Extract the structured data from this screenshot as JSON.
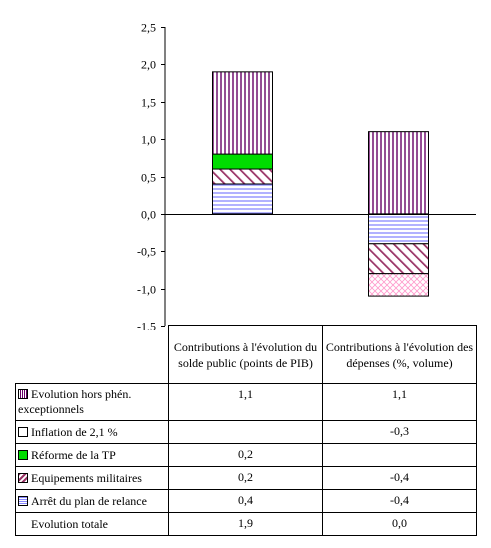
{
  "chart_data": {
    "type": "bar",
    "stacked": true,
    "ylim": [
      -1.5,
      2.5
    ],
    "yticks": [
      "2,5",
      "2,0",
      "1,5",
      "1,0",
      "0,5",
      "0,0",
      "-0,5",
      "-1,0",
      "-1,5"
    ],
    "ytick_values": [
      2.5,
      2.0,
      1.5,
      1.0,
      0.5,
      0.0,
      -0.5,
      -1.0,
      -1.5
    ],
    "categories": [
      "Contributions à l'évolution du solde public (points de PIB)",
      "Contributions à l'évolution des dépenses (%, volume)"
    ],
    "series": [
      {
        "name": "Evolution hors phén. exceptionnels",
        "values": [
          1.1,
          1.1
        ],
        "labels": [
          "1,1",
          "1,1"
        ],
        "color": "#660066",
        "pattern": "vertical"
      },
      {
        "name": "Inflation de 2,1 %",
        "values": [
          0,
          -0.3
        ],
        "labels": [
          "",
          "-0,3"
        ],
        "color": "#ff99cc",
        "pattern": "crosshatch"
      },
      {
        "name": "Réforme de la TP",
        "values": [
          0.2,
          0
        ],
        "labels": [
          "0,2",
          ""
        ],
        "color": "#00dd00",
        "pattern": "solid"
      },
      {
        "name": "Equipements militaires",
        "values": [
          0.2,
          -0.4
        ],
        "labels": [
          "0,2",
          "-0,4"
        ],
        "color": "#993366",
        "pattern": "diagonal"
      },
      {
        "name": "Arrêt du plan de relance",
        "values": [
          0.4,
          -0.4
        ],
        "labels": [
          "0,4",
          "-0,4"
        ],
        "color": "#8888ff",
        "pattern": "horizontal"
      }
    ],
    "total": {
      "name": "Evolution totale",
      "values": [
        1.9,
        0.0
      ],
      "labels": [
        "1,9",
        "0,0"
      ]
    }
  }
}
